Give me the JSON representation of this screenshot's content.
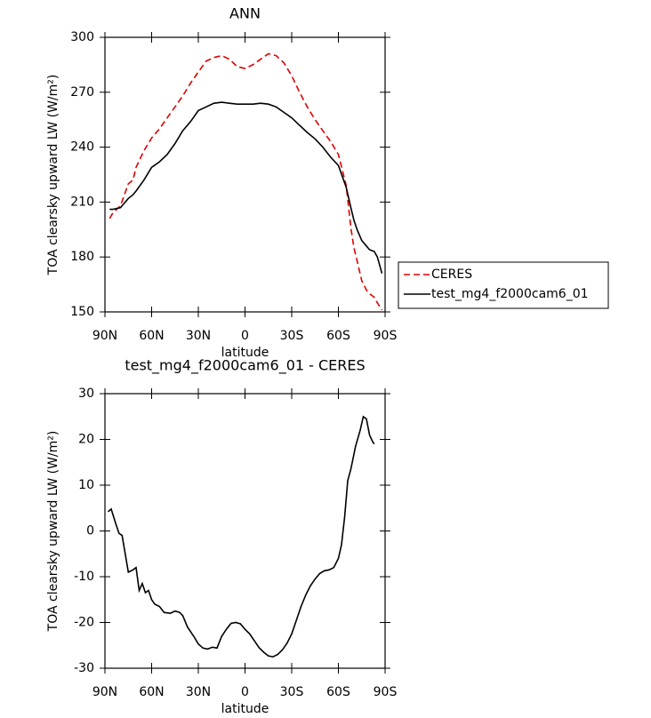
{
  "chart_data": [
    {
      "type": "line",
      "title": "ANN",
      "ylabel": "TOA clearsky upward LW (W/m²)",
      "xlabel": "latitude",
      "x": [
        87,
        85,
        80,
        75,
        72,
        70,
        65,
        60,
        55,
        50,
        45,
        40,
        35,
        30,
        25,
        20,
        15,
        10,
        5,
        0,
        -5,
        -10,
        -15,
        -20,
        -25,
        -30,
        -35,
        -40,
        -45,
        -50,
        -55,
        -60,
        -65,
        -68,
        -70,
        -72,
        -75,
        -78,
        -80,
        -83,
        -85,
        -88
      ],
      "series": [
        {
          "name": "CERES",
          "color": "#e00000",
          "line_style": "dashed",
          "values": [
            201,
            204,
            208,
            220,
            222,
            229,
            238,
            245,
            250,
            256,
            262,
            268,
            275,
            281,
            287,
            289,
            290,
            288,
            284,
            283,
            285,
            288,
            291,
            290,
            286,
            279,
            270,
            262,
            255,
            249,
            243,
            236,
            219,
            196,
            185,
            178,
            167,
            162,
            160,
            158,
            155,
            151
          ]
        },
        {
          "name": "test_mg4_f2000cam6_01",
          "color": "#000000",
          "line_style": "solid",
          "values": [
            206,
            206,
            207,
            212,
            214,
            216,
            222,
            229,
            232,
            236,
            242,
            249,
            254,
            260,
            262,
            264,
            264.5,
            264,
            263.5,
            263.5,
            263.5,
            264,
            263.5,
            262,
            259,
            256,
            252,
            248,
            244.5,
            240,
            234.5,
            230,
            218,
            207,
            200,
            195,
            189,
            186,
            184,
            183,
            180,
            171
          ]
        }
      ],
      "xlim": [
        90,
        -90
      ],
      "xticks": [
        {
          "value": 90,
          "label": "90N"
        },
        {
          "value": 60,
          "label": "60N"
        },
        {
          "value": 30,
          "label": "30N"
        },
        0,
        {
          "value": -30,
          "label": "30S"
        },
        {
          "value": -60,
          "label": "60S"
        },
        {
          "value": -90,
          "label": "90S"
        }
      ],
      "ylim": [
        150,
        300
      ],
      "yticks": [
        150,
        180,
        210,
        240,
        270,
        300
      ],
      "legend": "outside-right"
    },
    {
      "type": "line",
      "title": "test_mg4_f2000cam6_01 - CERES",
      "ylabel": "TOA clearsky upward LW (W/m²)",
      "xlabel": "latitude",
      "x": [
        88,
        86,
        83,
        81,
        79,
        77,
        75,
        72,
        70,
        68,
        66,
        64,
        62,
        60,
        58,
        55,
        52,
        48,
        45,
        42,
        40,
        37,
        33,
        30,
        27,
        24,
        21,
        18,
        15,
        12,
        9,
        6,
        3,
        0,
        -3,
        -6,
        -9,
        -12,
        -15,
        -18,
        -21,
        -24,
        -27,
        -30,
        -33,
        -36,
        -39,
        -42,
        -45,
        -48,
        -51,
        -54,
        -57,
        -60,
        -62,
        -64,
        -66,
        -68,
        -71,
        -74,
        -76,
        -78,
        -80,
        -82,
        -83
      ],
      "series": [
        {
          "color": "#000000",
          "line_style": "solid",
          "values": [
            4.2,
            4.8,
            1.5,
            -0.5,
            -1,
            -5,
            -9,
            -8.5,
            -8,
            -13,
            -11.5,
            -13.5,
            -13,
            -15,
            -16,
            -16.5,
            -17.8,
            -18,
            -17.5,
            -17.8,
            -18.5,
            -21,
            -23,
            -24.7,
            -25.6,
            -25.8,
            -25.4,
            -25.6,
            -23,
            -21.5,
            -20.2,
            -20,
            -20.3,
            -21.5,
            -22.5,
            -24,
            -25.5,
            -26.5,
            -27.3,
            -27.5,
            -27,
            -26,
            -24.5,
            -22.5,
            -19.5,
            -16.5,
            -14,
            -12,
            -10.5,
            -9.3,
            -8.7,
            -8.5,
            -8,
            -6,
            -3,
            3,
            11,
            13.5,
            18.5,
            22,
            25,
            24.5,
            21,
            19.5,
            19
          ]
        }
      ],
      "xlim": [
        90,
        -90
      ],
      "xticks": [
        {
          "value": 90,
          "label": "90N"
        },
        {
          "value": 60,
          "label": "60N"
        },
        {
          "value": 30,
          "label": "30N"
        },
        0,
        {
          "value": -30,
          "label": "30S"
        },
        {
          "value": -60,
          "label": "60S"
        },
        {
          "value": -90,
          "label": "90S"
        }
      ],
      "ylim": [
        -30,
        30
      ],
      "yticks": [
        -30,
        -20,
        -10,
        0,
        10,
        20,
        30
      ]
    }
  ]
}
